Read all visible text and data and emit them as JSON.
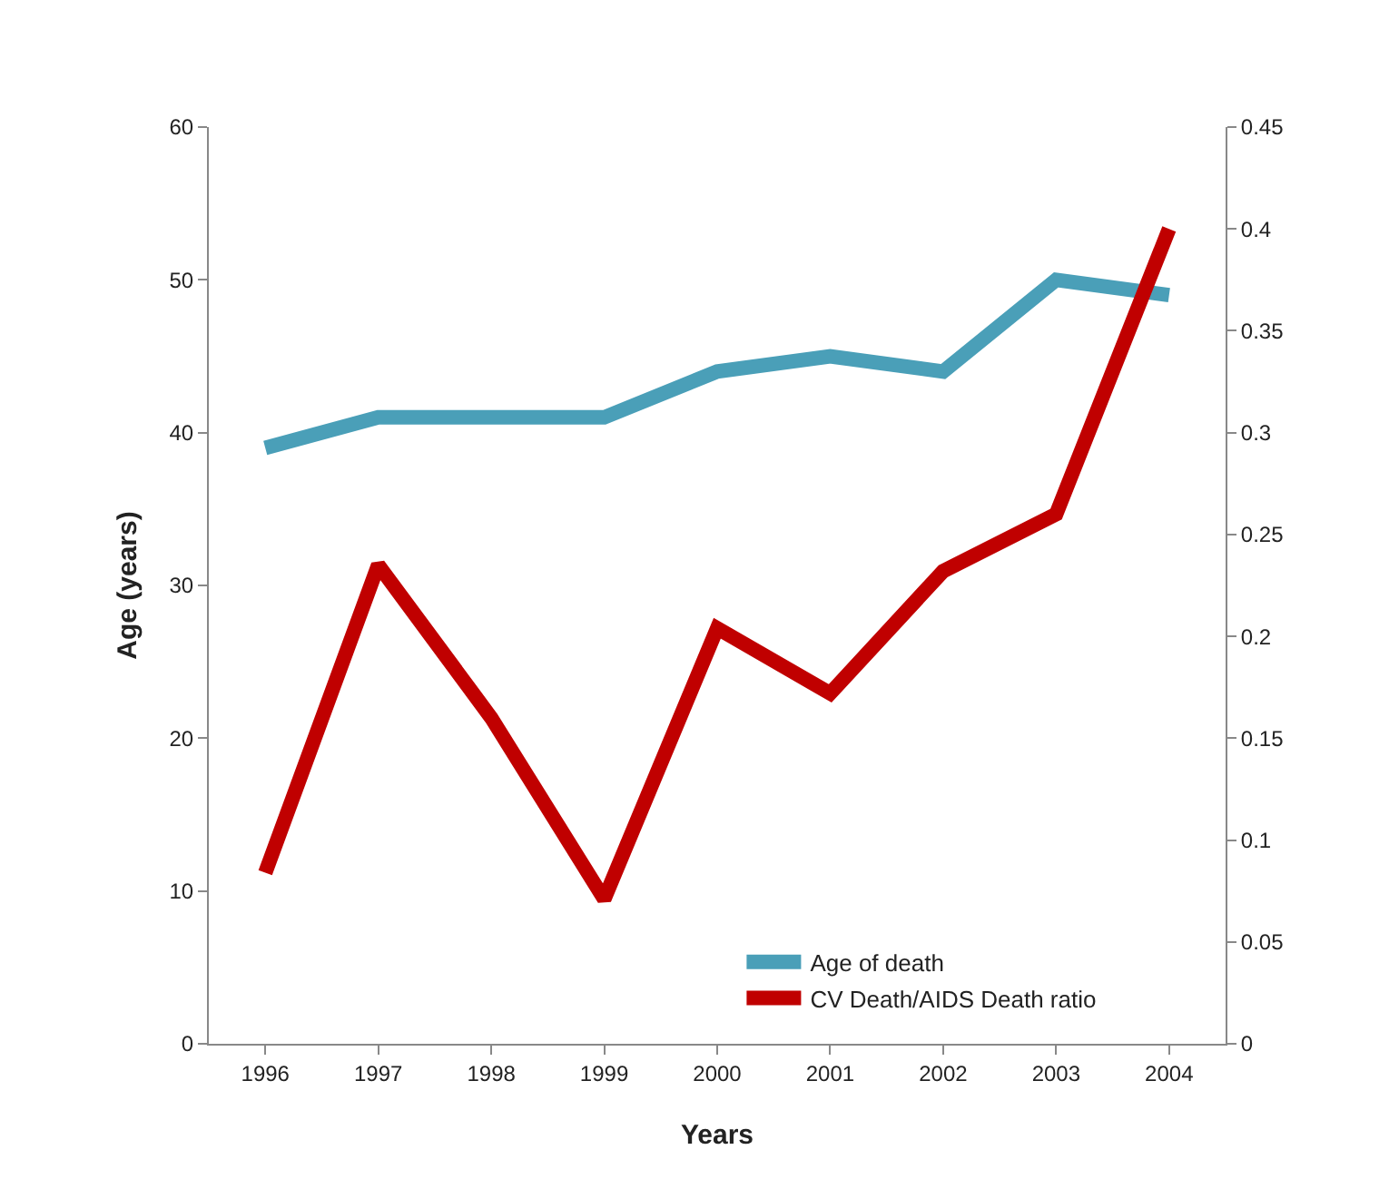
{
  "chart_data": {
    "type": "line",
    "xlabel": "Years",
    "ylabel": "Age (years)",
    "categories": [
      "1996",
      "1997",
      "1998",
      "1999",
      "2000",
      "2001",
      "2002",
      "2003",
      "2004"
    ],
    "series": [
      {
        "name": "Age of death",
        "color": "#4a9fb8",
        "values": [
          39,
          41,
          41,
          41,
          44,
          45,
          44,
          50,
          49
        ]
      },
      {
        "name": "CV Death/AIDS Death ratio",
        "color": "#c00000",
        "axis": "y2",
        "values": [
          0.084,
          0.235,
          0.16,
          0.071,
          0.204,
          0.172,
          0.232,
          0.26,
          0.4
        ]
      }
    ],
    "ylim": [
      0,
      60
    ],
    "yticks": [
      0,
      10,
      20,
      30,
      40,
      50,
      60
    ],
    "y2lim": [
      0,
      0.45
    ],
    "y2ticks": [
      0,
      0.05,
      0.1,
      0.15,
      0.2,
      0.25,
      0.3,
      0.35,
      0.4,
      0.45
    ],
    "grid": false,
    "legend": "bottom right",
    "marker": "none",
    "line_style": "solid"
  }
}
